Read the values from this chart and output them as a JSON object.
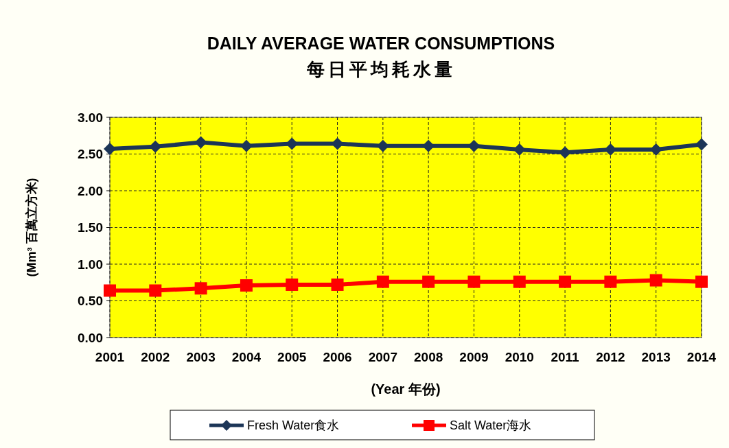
{
  "chart_data": {
    "type": "line",
    "title": "DAILY AVERAGE WATER CONSUMPTIONS",
    "subtitle": "每日平均耗水量",
    "xlabel": "(Year 年份)",
    "ylabel": "(Mm³ 百萬立方米)",
    "categories": [
      "2001",
      "2002",
      "2003",
      "2004",
      "2005",
      "2006",
      "2007",
      "2008",
      "2009",
      "2010",
      "2011",
      "2012",
      "2013",
      "2014"
    ],
    "series": [
      {
        "name": "Fresh Water食水",
        "color": "#1c3557",
        "marker": "diamond",
        "values": [
          2.57,
          2.6,
          2.66,
          2.61,
          2.64,
          2.64,
          2.61,
          2.61,
          2.61,
          2.56,
          2.52,
          2.56,
          2.56,
          2.63
        ]
      },
      {
        "name": "Salt Water海水",
        "color": "#ff0000",
        "marker": "square",
        "values": [
          0.64,
          0.64,
          0.67,
          0.71,
          0.72,
          0.72,
          0.76,
          0.76,
          0.76,
          0.76,
          0.76,
          0.76,
          0.78,
          0.76
        ]
      }
    ],
    "ylim": [
      0,
      3
    ],
    "yticks": [
      {
        "value": 0,
        "label": "0.00"
      },
      {
        "value": 0.5,
        "label": "0.50"
      },
      {
        "value": 1,
        "label": "1.00"
      },
      {
        "value": 1.5,
        "label": "1.50"
      },
      {
        "value": 2,
        "label": "2.00"
      },
      {
        "value": 2.5,
        "label": "2.50"
      },
      {
        "value": 3,
        "label": "3.00"
      }
    ],
    "grid": true,
    "legend": "bottom",
    "line_style": "solid"
  }
}
